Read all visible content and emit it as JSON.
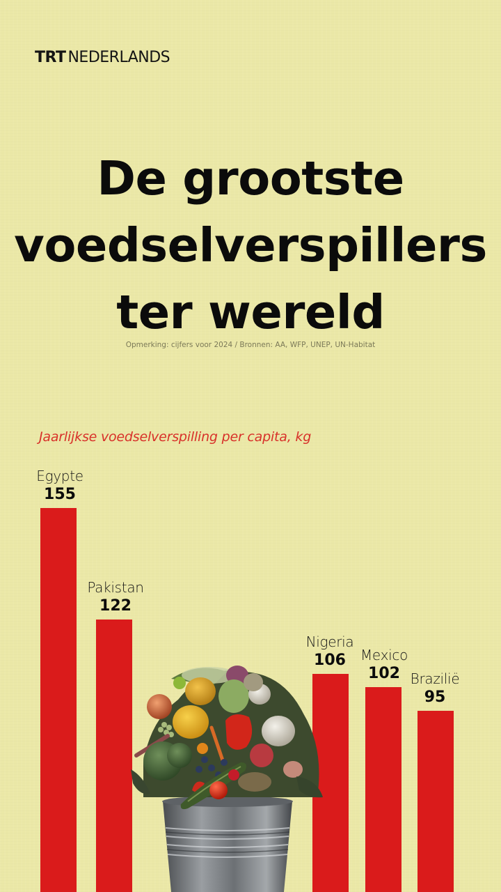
{
  "brand": {
    "trt": "TRT",
    "name": "NEDERLANDS"
  },
  "title": {
    "lines": [
      "De grootste",
      "voedselverspillers",
      "ter wereld"
    ]
  },
  "note": "Opmerking: cijfers voor 2024 / Bronnen: AA, WFP, UNEP, UN-Habitat",
  "colors": {
    "background": "#ebe8a7",
    "bar": "#da1b1b",
    "subtitle": "#d8312a",
    "text": "#0b0b0b"
  },
  "illustration": "bucket-of-wasted-vegetables",
  "chart_data": {
    "type": "bar",
    "title": "De grootste voedselverspillers ter wereld",
    "subtitle": "Jaarlijkse voedselverspilling per capita, kg",
    "xlabel": "",
    "ylabel": "kg per capita per jaar",
    "categories": [
      "Egypte",
      "Pakistan",
      "Nigeria",
      "Mexico",
      "Brazilië"
    ],
    "values": [
      155,
      122,
      106,
      102,
      95
    ],
    "unit": "kg",
    "grid": false,
    "legend": "none",
    "source": "AA, WFP, UNEP, UN-Habitat",
    "note": "cijfers voor 2024"
  }
}
